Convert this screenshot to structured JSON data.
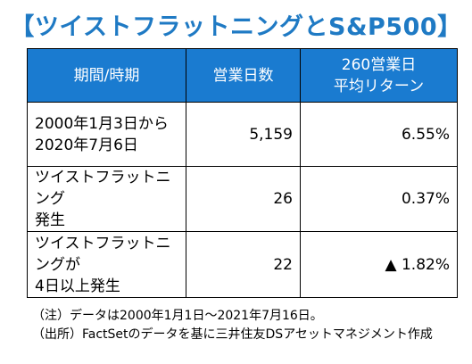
{
  "title": "【ツイストフラットニングとS&P500】",
  "table": {
    "headers": {
      "period": "期間/時期",
      "days": "営業日数",
      "avg_return_line1": "260営業日",
      "avg_return_line2": "平均リターン"
    },
    "rows": [
      {
        "period_line1": "2000年1月3日から",
        "period_line2": "2020年7月6日",
        "days": "5,159",
        "return": "6.55%"
      },
      {
        "period_line1": "ツイストフラットニング",
        "period_line2": "発生",
        "days": "26",
        "return": "0.37%"
      },
      {
        "period_line1": "ツイストフラットニングが",
        "period_line2": "4日以上発生",
        "days": "22",
        "return": "▲ 1.82%"
      }
    ]
  },
  "notes": {
    "note": "（注）データは2000年1月1日～2021年7月16日。",
    "source": "（出所）FactSetのデータを基に三井住友DSアセットマネジメント作成"
  },
  "colors": {
    "title": "#1f7ac4",
    "header_bg": "#1a7bd0",
    "header_text": "#ffffff"
  }
}
